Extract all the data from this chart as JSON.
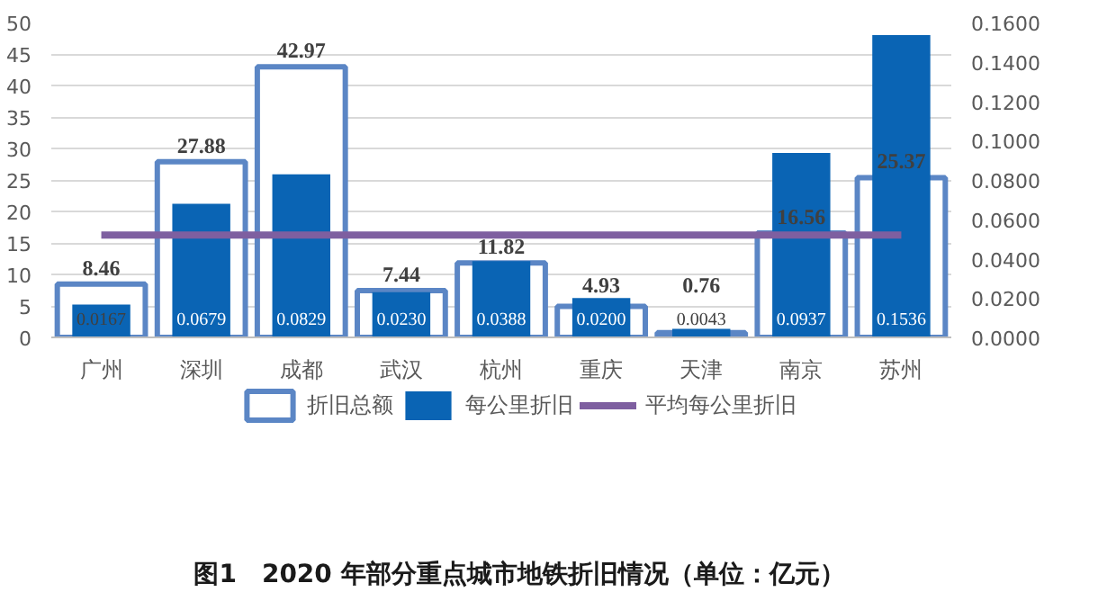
{
  "chart_data": {
    "type": "bar",
    "title": "图1　2020 年部分重点城市地铁折旧情况（单位：亿元）",
    "categories": [
      "广州",
      "深圳",
      "成都",
      "武汉",
      "杭州",
      "重庆",
      "天津",
      "南京",
      "苏州"
    ],
    "series": [
      {
        "name": "折旧总额",
        "color": "#5b86c5",
        "values": [
          8.46,
          27.88,
          42.97,
          7.44,
          11.82,
          4.93,
          0.76,
          16.56,
          25.37
        ],
        "value_labels": [
          "8.46",
          "27.88",
          "42.97",
          "7.44",
          "11.82",
          "4.93",
          "0.76",
          "16.56",
          "25.37"
        ]
      },
      {
        "name": "每公里折旧",
        "axis": "y2",
        "color": "#0a64b4",
        "values": [
          0.0167,
          0.0679,
          0.0829,
          0.023,
          0.0388,
          0.02,
          0.0043,
          0.0937,
          0.1536
        ],
        "value_labels": [
          "0.0167",
          "0.0679",
          "0.0829",
          "0.0230",
          "0.0388",
          "0.0200",
          "0.0043",
          "0.0937",
          "0.1536"
        ]
      },
      {
        "name": "平均每公里折旧",
        "type": "line",
        "axis": "y2",
        "color": "#7e5fa0",
        "values": [
          0.052,
          0.052,
          0.052,
          0.052,
          0.052,
          0.052,
          0.052,
          0.052,
          0.052
        ]
      }
    ],
    "ylim": [
      0,
      50
    ],
    "yticks": [
      0,
      5,
      10,
      15,
      20,
      25,
      30,
      35,
      40,
      45,
      50
    ],
    "y2lim": [
      0,
      0.16
    ],
    "y2ticks": [
      {
        "value": 0,
        "label": "0.0000"
      },
      {
        "value": 0.02,
        "label": "0.0200"
      },
      {
        "value": 0.04,
        "label": "0.0400"
      },
      {
        "value": 0.06,
        "label": "0.0600"
      },
      {
        "value": 0.08,
        "label": "0.0800"
      },
      {
        "value": 0.1,
        "label": "0.1000"
      },
      {
        "value": 0.12,
        "label": "0.1200"
      },
      {
        "value": 0.14,
        "label": "0.1400"
      },
      {
        "value": 0.16,
        "label": "0.1600"
      }
    ],
    "grid": "y",
    "legend": "bottom"
  }
}
